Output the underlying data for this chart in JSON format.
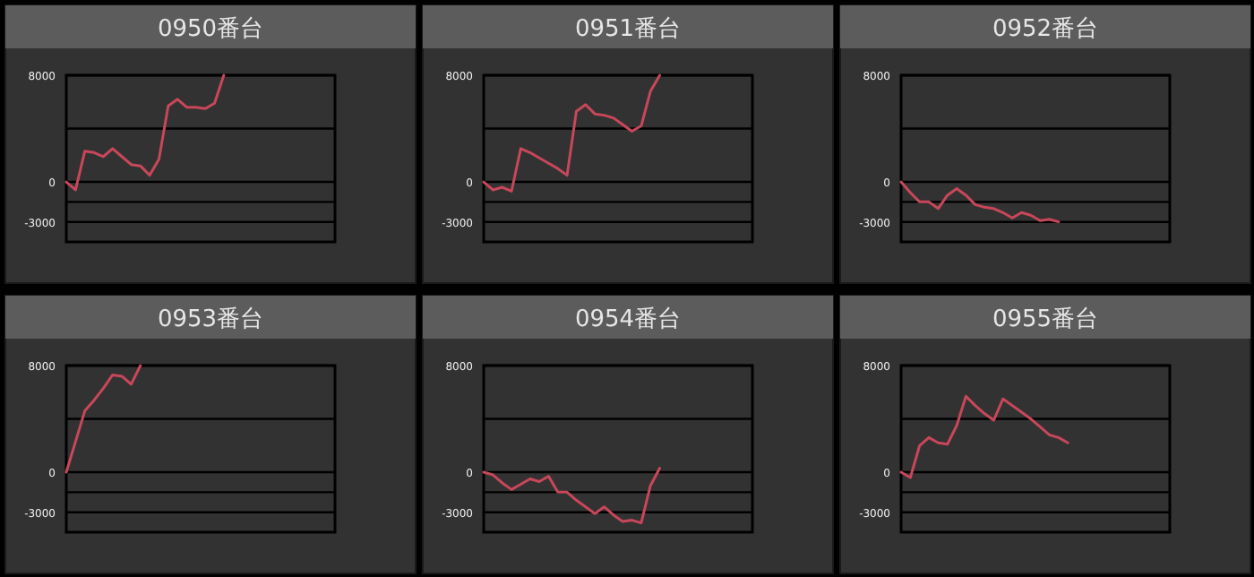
{
  "chart_data": [
    {
      "type": "line",
      "title": "0950番台",
      "categories": [
        null,
        null,
        null,
        null,
        null,
        null,
        null,
        null,
        null,
        null,
        null,
        null,
        null,
        null,
        null,
        null,
        null,
        null,
        null,
        null,
        null,
        null,
        null,
        null,
        null,
        null,
        null,
        null,
        null,
        null
      ],
      "values": [
        0,
        -600,
        2300,
        2200,
        1900,
        2500,
        1900,
        1300,
        1200,
        500,
        1700,
        5700,
        6200,
        5600,
        5600,
        5500,
        5900,
        8000,
        null,
        null,
        null,
        null,
        null,
        null,
        null,
        null,
        null,
        null,
        null,
        null
      ],
      "color": "#c8475a",
      "ylim": [
        -4500,
        8000
      ],
      "yticks": [
        8000,
        0,
        -3000
      ],
      "ref_lines": [
        {
          "axis": "y",
          "value": 4000,
          "color": "#000000"
        },
        {
          "axis": "y",
          "value": -1500,
          "color": "#000000"
        }
      ],
      "grid": "y",
      "tick_labels": "y"
    },
    {
      "type": "line",
      "title": "0951番台",
      "categories": [
        null,
        null,
        null,
        null,
        null,
        null,
        null,
        null,
        null,
        null,
        null,
        null,
        null,
        null,
        null,
        null,
        null,
        null,
        null,
        null,
        null,
        null,
        null,
        null,
        null,
        null,
        null,
        null,
        null,
        null
      ],
      "values": [
        0,
        -600,
        -400,
        -700,
        2500,
        2200,
        1800,
        1400,
        1000,
        500,
        5300,
        5800,
        5100,
        5000,
        4800,
        4300,
        3800,
        4200,
        6800,
        8000,
        null,
        null,
        null,
        null,
        null,
        null,
        null,
        null,
        null,
        null
      ],
      "color": "#c8475a",
      "ylim": [
        -4500,
        8000
      ],
      "yticks": [
        8000,
        0,
        -3000
      ],
      "ref_lines": [
        {
          "axis": "y",
          "value": 4000,
          "color": "#000000"
        },
        {
          "axis": "y",
          "value": -1500,
          "color": "#000000"
        }
      ],
      "grid": "y",
      "tick_labels": "y"
    },
    {
      "type": "line",
      "title": "0952番台",
      "categories": [
        null,
        null,
        null,
        null,
        null,
        null,
        null,
        null,
        null,
        null,
        null,
        null,
        null,
        null,
        null,
        null,
        null,
        null,
        null,
        null,
        null,
        null,
        null,
        null,
        null,
        null,
        null,
        null,
        null,
        null
      ],
      "values": [
        0,
        -800,
        -1500,
        -1500,
        -2000,
        -1000,
        -500,
        -1000,
        -1700,
        -1900,
        -2000,
        -2300,
        -2700,
        -2300,
        -2500,
        -2900,
        -2800,
        -3000,
        null,
        null,
        null,
        null,
        null,
        null,
        null,
        null,
        null,
        null,
        null,
        null
      ],
      "color": "#c8475a",
      "ylim": [
        -4500,
        8000
      ],
      "yticks": [
        8000,
        0,
        -3000
      ],
      "ref_lines": [
        {
          "axis": "y",
          "value": 4000,
          "color": "#000000"
        },
        {
          "axis": "y",
          "value": -1500,
          "color": "#000000"
        }
      ],
      "grid": "y",
      "tick_labels": "y"
    },
    {
      "type": "line",
      "title": "0953番台",
      "categories": [
        null,
        null,
        null,
        null,
        null,
        null,
        null,
        null,
        null,
        null,
        null,
        null,
        null,
        null,
        null,
        null,
        null,
        null,
        null,
        null,
        null,
        null,
        null,
        null,
        null,
        null,
        null,
        null,
        null,
        null
      ],
      "values": [
        0,
        2300,
        4600,
        5400,
        6300,
        7300,
        7200,
        6600,
        8000,
        null,
        null,
        null,
        null,
        null,
        null,
        null,
        null,
        null,
        null,
        null,
        null,
        null,
        null,
        null,
        null,
        null,
        null,
        null,
        null,
        null
      ],
      "color": "#c8475a",
      "ylim": [
        -4500,
        8000
      ],
      "yticks": [
        8000,
        0,
        -3000
      ],
      "ref_lines": [
        {
          "axis": "y",
          "value": 4000,
          "color": "#000000"
        },
        {
          "axis": "y",
          "value": -1500,
          "color": "#000000"
        }
      ],
      "grid": "y",
      "tick_labels": "y"
    },
    {
      "type": "line",
      "title": "0954番台",
      "categories": [
        null,
        null,
        null,
        null,
        null,
        null,
        null,
        null,
        null,
        null,
        null,
        null,
        null,
        null,
        null,
        null,
        null,
        null,
        null,
        null,
        null,
        null,
        null,
        null,
        null,
        null,
        null,
        null,
        null,
        null
      ],
      "values": [
        0,
        -200,
        -800,
        -1300,
        -900,
        -500,
        -700,
        -300,
        -1500,
        -1500,
        -2100,
        -2600,
        -3100,
        -2600,
        -3200,
        -3700,
        -3600,
        -3800,
        -1000,
        300,
        null,
        null,
        null,
        null,
        null,
        null,
        null,
        null,
        null,
        null
      ],
      "color": "#c8475a",
      "ylim": [
        -4500,
        8000
      ],
      "yticks": [
        8000,
        0,
        -3000
      ],
      "ref_lines": [
        {
          "axis": "y",
          "value": 4000,
          "color": "#000000"
        },
        {
          "axis": "y",
          "value": -1500,
          "color": "#000000"
        }
      ],
      "grid": "y",
      "tick_labels": "y"
    },
    {
      "type": "line",
      "title": "0955番台",
      "categories": [
        null,
        null,
        null,
        null,
        null,
        null,
        null,
        null,
        null,
        null,
        null,
        null,
        null,
        null,
        null,
        null,
        null,
        null,
        null,
        null,
        null,
        null,
        null,
        null,
        null,
        null,
        null,
        null,
        null,
        null
      ],
      "values": [
        0,
        -400,
        2000,
        2600,
        2200,
        2100,
        3500,
        5700,
        5000,
        4400,
        3900,
        5500,
        5000,
        4500,
        4000,
        3400,
        2800,
        2600,
        2200,
        null,
        null,
        null,
        null,
        null,
        null,
        null,
        null,
        null,
        null,
        null
      ],
      "color": "#c8475a",
      "ylim": [
        -4500,
        8000
      ],
      "yticks": [
        8000,
        0,
        -3000
      ],
      "ref_lines": [
        {
          "axis": "y",
          "value": 4000,
          "color": "#000000"
        },
        {
          "axis": "y",
          "value": -1500,
          "color": "#000000"
        }
      ],
      "grid": "y",
      "tick_labels": "y"
    }
  ]
}
